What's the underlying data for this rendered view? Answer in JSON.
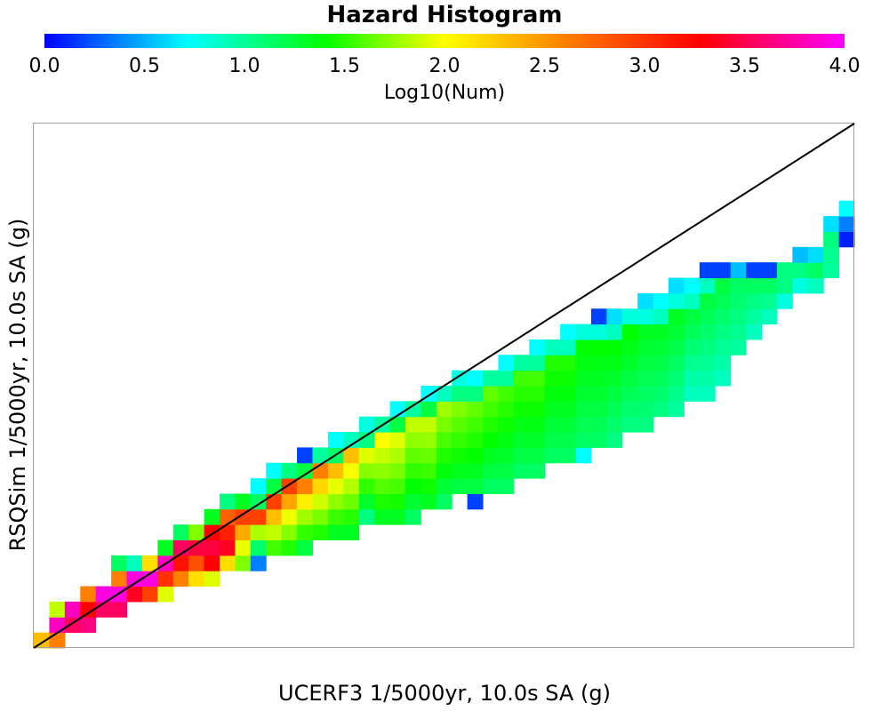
{
  "chart_data": {
    "type": "heatmap",
    "title": "Hazard Histogram",
    "xlabel": "UCERF3 1/5000yr, 10.0s SA (g)",
    "ylabel": "RSQSim 1/5000yr, 10.0s SA (g)",
    "colorbar": {
      "label": "Log10(Num)",
      "range": [
        0,
        4
      ],
      "ticks": [
        "0.0",
        "0.5",
        "1.0",
        "1.5",
        "2.0",
        "2.5",
        "3.0",
        "3.5",
        "4.0"
      ],
      "colormap": "rainbow (blue-cyan-green-yellow-orange-red-magenta)"
    },
    "grid_bins": 53,
    "xlim": [
      0,
      53
    ],
    "ylim": [
      0,
      34
    ],
    "reference_line": "y = x",
    "note_values": "z = Log10(Num) per bin; bins listed per column as [row_start, row_end, z_start, z_end] (row_end inclusive)",
    "columns": [
      [
        [
          0,
          0,
          2.6,
          2.6
        ]
      ],
      [
        [
          0,
          0,
          2.8,
          2.8
        ],
        [
          1,
          1,
          3.8,
          3.8
        ],
        [
          2,
          2,
          2.2,
          2.2
        ]
      ],
      [
        [
          1,
          2,
          3.5,
          3.8
        ]
      ],
      [
        [
          1,
          2,
          3.6,
          3.2
        ],
        [
          3,
          3,
          2.8,
          2.8
        ]
      ],
      [
        [
          2,
          3,
          3.5,
          3.9
        ]
      ],
      [
        [
          2,
          3,
          3.5,
          3.9
        ],
        [
          4,
          5,
          2.8,
          1.3
        ]
      ],
      [
        [
          3,
          4,
          3.3,
          3.9
        ],
        [
          5,
          5,
          1.0,
          1.0
        ]
      ],
      [
        [
          3,
          4,
          3.0,
          3.9
        ],
        [
          5,
          5,
          2.5,
          2.5
        ]
      ],
      [
        [
          3,
          5,
          2.3,
          3.8
        ],
        [
          6,
          6,
          1.5,
          1.5
        ]
      ],
      [
        [
          4,
          6,
          2.8,
          3.5
        ],
        [
          7,
          7,
          1.3,
          1.3
        ]
      ],
      [
        [
          4,
          6,
          2.5,
          3.4
        ],
        [
          7,
          7,
          2.0,
          2.0
        ]
      ],
      [
        [
          4,
          5,
          2.3,
          3.2
        ],
        [
          6,
          7,
          3.4,
          3.2
        ],
        [
          8,
          8,
          1.5,
          1.5
        ]
      ],
      [
        [
          5,
          6,
          2.5,
          3.3
        ],
        [
          7,
          8,
          3.1,
          2.9
        ],
        [
          9,
          9,
          1.2,
          1.2
        ]
      ],
      [
        [
          5,
          8,
          2.0,
          3.0
        ],
        [
          9,
          9,
          1.5,
          1.5
        ]
      ],
      [
        [
          5,
          8,
          0.4,
          3.0
        ],
        [
          9,
          9,
          1.3,
          1.3
        ],
        [
          10,
          10,
          0.8,
          0.8
        ]
      ],
      [
        [
          6,
          9,
          1.8,
          3.0
        ],
        [
          10,
          10,
          1.4,
          1.4
        ],
        [
          11,
          11,
          0.8,
          0.8
        ]
      ],
      [
        [
          6,
          10,
          1.7,
          3.0
        ],
        [
          11,
          11,
          1.2,
          1.2
        ]
      ],
      [
        [
          6,
          10,
          1.4,
          2.8
        ],
        [
          11,
          11,
          1.4,
          1.4
        ],
        [
          12,
          12,
          0.2,
          0.2
        ]
      ],
      [
        [
          7,
          11,
          1.7,
          2.8
        ],
        [
          12,
          12,
          1.1,
          1.1
        ]
      ],
      [
        [
          7,
          11,
          1.5,
          2.6
        ],
        [
          12,
          12,
          1.3,
          1.3
        ],
        [
          13,
          13,
          0.8,
          0.8
        ]
      ],
      [
        [
          7,
          12,
          1.5,
          2.6
        ],
        [
          13,
          13,
          1.0,
          1.0
        ]
      ],
      [
        [
          8,
          12,
          1.2,
          2.3
        ],
        [
          13,
          13,
          1.2,
          1.2
        ],
        [
          14,
          14,
          0.9,
          0.9
        ]
      ],
      [
        [
          8,
          13,
          1.5,
          2.4
        ],
        [
          14,
          14,
          1.1,
          1.1
        ]
      ],
      [
        [
          8,
          13,
          1.5,
          2.3
        ],
        [
          14,
          14,
          1.4,
          1.4
        ],
        [
          15,
          15,
          0.8,
          0.8
        ]
      ],
      [
        [
          8,
          14,
          1.3,
          2.2
        ],
        [
          15,
          15,
          1.1,
          1.1
        ]
      ],
      [
        [
          9,
          14,
          1.5,
          2.2
        ],
        [
          15,
          15,
          1.4,
          1.4
        ],
        [
          16,
          16,
          0.8,
          0.8
        ]
      ],
      [
        [
          9,
          15,
          1.3,
          2.1
        ],
        [
          16,
          16,
          1.0,
          1.0
        ]
      ],
      [
        [
          10,
          15,
          1.4,
          2.0
        ],
        [
          16,
          16,
          1.2,
          1.2
        ],
        [
          17,
          17,
          0.9,
          0.9
        ]
      ],
      [
        [
          9,
          9,
          0.2,
          0.2
        ],
        [
          10,
          15,
          1.4,
          1.9
        ],
        [
          16,
          16,
          1.2,
          1.2
        ],
        [
          17,
          17,
          0.8,
          0.8
        ]
      ],
      [
        [
          10,
          16,
          1.3,
          1.9
        ],
        [
          17,
          17,
          1.1,
          1.1
        ]
      ],
      [
        [
          10,
          16,
          1.3,
          1.8
        ],
        [
          17,
          17,
          1.1,
          1.1
        ],
        [
          18,
          18,
          0.8,
          0.8
        ]
      ],
      [
        [
          11,
          17,
          1.3,
          1.8
        ],
        [
          18,
          18,
          1.1,
          1.1
        ]
      ],
      [
        [
          11,
          17,
          1.3,
          1.8
        ],
        [
          18,
          18,
          1.1,
          1.1
        ],
        [
          19,
          19,
          0.8,
          0.8
        ]
      ],
      [
        [
          12,
          18,
          1.3,
          1.7
        ],
        [
          19,
          19,
          1.0,
          1.0
        ]
      ],
      [
        [
          12,
          18,
          1.3,
          1.7
        ],
        [
          19,
          19,
          1.0,
          1.0
        ],
        [
          20,
          20,
          0.8,
          0.8
        ]
      ],
      [
        [
          12,
          12,
          0.8,
          0.8
        ],
        [
          13,
          19,
          1.3,
          1.6
        ],
        [
          20,
          20,
          0.9,
          0.9
        ]
      ],
      [
        [
          13,
          19,
          1.3,
          1.6
        ],
        [
          20,
          20,
          0.9,
          0.9
        ],
        [
          21,
          21,
          0.2,
          0.2
        ]
      ],
      [
        [
          13,
          19,
          1.2,
          1.6
        ],
        [
          20,
          20,
          1.0,
          1.0
        ],
        [
          21,
          21,
          0.7,
          0.7
        ]
      ],
      [
        [
          14,
          20,
          1.2,
          1.6
        ],
        [
          21,
          21,
          0.9,
          0.9
        ]
      ],
      [
        [
          14,
          20,
          1.2,
          1.5
        ],
        [
          21,
          21,
          0.9,
          0.9
        ],
        [
          22,
          22,
          0.7,
          0.7
        ]
      ],
      [
        [
          15,
          20,
          1.2,
          1.5
        ],
        [
          21,
          21,
          1.0,
          1.0
        ],
        [
          22,
          22,
          0.8,
          0.8
        ]
      ],
      [
        [
          15,
          21,
          1.1,
          1.5
        ],
        [
          22,
          22,
          0.9,
          0.9
        ],
        [
          23,
          23,
          0.7,
          0.7
        ]
      ],
      [
        [
          16,
          21,
          1.0,
          1.4
        ],
        [
          22,
          22,
          1.0,
          1.0
        ],
        [
          23,
          23,
          0.8,
          0.8
        ]
      ],
      [
        [
          16,
          22,
          1.0,
          1.4
        ],
        [
          23,
          23,
          1.0,
          1.0
        ],
        [
          24,
          24,
          0.2,
          0.2
        ]
      ],
      [
        [
          17,
          23,
          1.0,
          1.4
        ],
        [
          24,
          24,
          0.2,
          0.2
        ]
      ],
      [
        [
          19,
          23,
          1.1,
          1.3
        ],
        [
          24,
          24,
          0.6,
          0.6
        ]
      ],
      [
        [
          20,
          23,
          1.0,
          1.3
        ],
        [
          24,
          24,
          0.2,
          0.2
        ]
      ],
      [
        [
          21,
          23,
          1.0,
          1.3
        ],
        [
          24,
          24,
          0.2,
          0.2
        ]
      ],
      [
        [
          22,
          23,
          0.9,
          1.2
        ],
        [
          24,
          24,
          1.2,
          1.2
        ]
      ],
      [
        [
          23,
          24,
          0.9,
          1.2
        ],
        [
          25,
          25,
          0.6,
          0.6
        ]
      ],
      [
        [
          23,
          24,
          1.0,
          1.3
        ],
        [
          25,
          25,
          0.7,
          0.7
        ]
      ],
      [
        [
          24,
          26,
          1.1,
          1.2
        ],
        [
          27,
          27,
          0.7,
          0.7
        ]
      ],
      [
        [
          26,
          26,
          0.1,
          0.1
        ],
        [
          27,
          27,
          0.4,
          0.4
        ],
        [
          28,
          28,
          0.8,
          0.8
        ]
      ]
    ]
  }
}
